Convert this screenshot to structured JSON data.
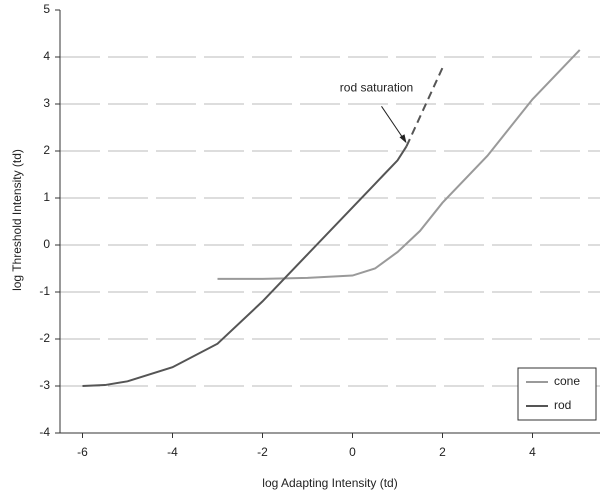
{
  "chart_data": {
    "type": "line",
    "xlabel": "log Adapting Intensity (td)",
    "ylabel": "log Threshold Intensity (td)",
    "xlim": [
      -6.5,
      5.5
    ],
    "xticks": [
      -6,
      -4,
      -2,
      0,
      2,
      4
    ],
    "ylim": [
      -4,
      5
    ],
    "yticks": [
      -4,
      -3,
      -2,
      -1,
      0,
      1,
      2,
      3,
      4,
      5
    ],
    "grid": true,
    "legend": "lower right",
    "series": [
      {
        "name": "cone",
        "color": "#9a9a9a",
        "x": [
          -3,
          -2,
          -1,
          0,
          0.5,
          1,
          1.5,
          2,
          3,
          4,
          5.05
        ],
        "values": [
          -0.72,
          -0.72,
          -0.7,
          -0.65,
          -0.5,
          -0.15,
          0.3,
          0.9,
          1.9,
          3.1,
          4.15
        ]
      },
      {
        "name": "rod",
        "color": "#555555",
        "x": [
          -6,
          -5.5,
          -5,
          -4,
          -3,
          -2,
          -1,
          0,
          0.5,
          1,
          1.2
        ],
        "values": [
          -3,
          -2.98,
          -2.9,
          -2.6,
          -2.1,
          -1.2,
          -0.2,
          0.8,
          1.3,
          1.8,
          2.1
        ]
      }
    ],
    "saturation_line": {
      "x": [
        1.2,
        2.0
      ],
      "values": [
        2.1,
        3.77
      ]
    },
    "annotation": {
      "text": "rod saturation",
      "x": 1.2,
      "y": 2.1
    }
  }
}
